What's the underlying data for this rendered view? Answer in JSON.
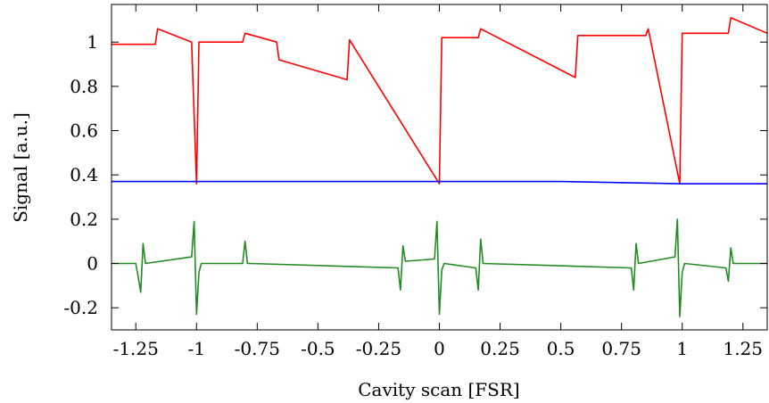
{
  "chart_data": {
    "type": "line",
    "xlabel": "Cavity scan [FSR]",
    "ylabel": "Signal [a.u.]",
    "xlim": [
      -1.35,
      1.35
    ],
    "ylim": [
      -0.3,
      1.17
    ],
    "x_ticks": [
      {
        "value": -1.25,
        "label": "-1.25"
      },
      {
        "value": -1.0,
        "label": "-1"
      },
      {
        "value": -0.75,
        "label": "-0.75"
      },
      {
        "value": -0.5,
        "label": "-0.5"
      },
      {
        "value": -0.25,
        "label": "-0.25"
      },
      {
        "value": 0.0,
        "label": "0"
      },
      {
        "value": 0.25,
        "label": "0.25"
      },
      {
        "value": 0.5,
        "label": "0.5"
      },
      {
        "value": 0.75,
        "label": "0.75"
      },
      {
        "value": 1.0,
        "label": "1"
      },
      {
        "value": 1.25,
        "label": "1.25"
      }
    ],
    "y_ticks": [
      {
        "value": -0.2,
        "label": "-0.2"
      },
      {
        "value": 0.0,
        "label": "0"
      },
      {
        "value": 0.2,
        "label": "0.2"
      },
      {
        "value": 0.4,
        "label": "0.4"
      },
      {
        "value": 0.6,
        "label": "0.6"
      },
      {
        "value": 0.8,
        "label": "0.8"
      },
      {
        "value": 1.0,
        "label": "1"
      }
    ],
    "grid": false,
    "legend": "none",
    "series": [
      {
        "color": "#ff0000",
        "x": [
          -1.35,
          -1.17,
          -1.16,
          -1.02,
          -1.0,
          -0.99,
          -0.81,
          -0.8,
          -0.67,
          -0.66,
          -0.38,
          -0.37,
          0.0,
          0.01,
          0.16,
          0.17,
          0.56,
          0.57,
          0.85,
          0.86,
          0.99,
          1.0,
          1.19,
          1.2,
          1.35
        ],
        "y": [
          0.99,
          0.99,
          1.06,
          1.0,
          0.36,
          1.0,
          1.0,
          1.04,
          1.0,
          0.92,
          0.83,
          1.01,
          0.36,
          1.02,
          1.02,
          1.06,
          0.84,
          1.03,
          1.03,
          1.06,
          0.36,
          1.04,
          1.04,
          1.11,
          1.04
        ]
      },
      {
        "color": "#0000ff",
        "x": [
          -1.35,
          -1.0,
          -0.5,
          0.0,
          0.5,
          1.0,
          1.35
        ],
        "y": [
          0.37,
          0.37,
          0.37,
          0.37,
          0.37,
          0.36,
          0.36
        ]
      },
      {
        "color": "#228b22",
        "x": [
          -1.35,
          -1.25,
          -1.24,
          -1.23,
          -1.22,
          -1.21,
          -1.02,
          -1.01,
          -1.0,
          -0.99,
          -0.98,
          -0.81,
          -0.8,
          -0.79,
          -0.78,
          -0.17,
          -0.16,
          -0.15,
          -0.14,
          -0.02,
          -0.01,
          0.0,
          0.01,
          0.02,
          0.15,
          0.16,
          0.17,
          0.18,
          0.79,
          0.8,
          0.81,
          0.82,
          0.97,
          0.98,
          0.99,
          1.0,
          1.01,
          1.18,
          1.19,
          1.2,
          1.21,
          1.35
        ],
        "y": [
          0.0,
          0.0,
          -0.06,
          -0.13,
          0.09,
          0.0,
          0.03,
          0.19,
          -0.23,
          -0.04,
          0.0,
          0.0,
          0.1,
          0.0,
          0.0,
          -0.02,
          -0.12,
          0.08,
          0.01,
          0.02,
          0.19,
          -0.23,
          -0.03,
          0.0,
          -0.02,
          -0.12,
          0.11,
          0.0,
          -0.02,
          -0.12,
          0.09,
          0.0,
          0.03,
          0.2,
          -0.24,
          -0.04,
          0.0,
          -0.02,
          -0.08,
          0.07,
          0.0,
          0.0
        ]
      }
    ]
  }
}
